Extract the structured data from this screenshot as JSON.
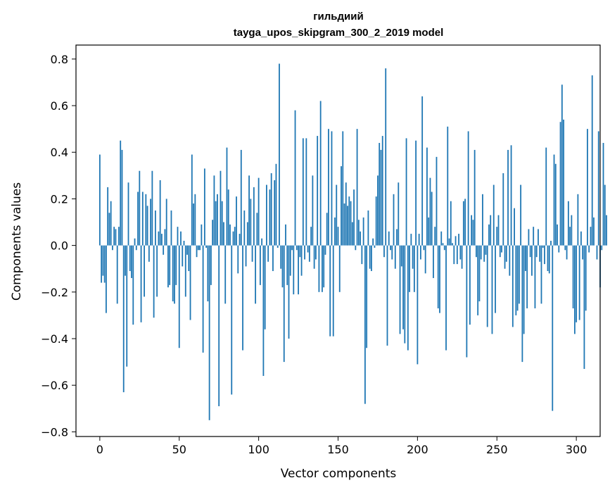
{
  "chart_data": {
    "type": "bar",
    "title": "гильдиий",
    "subtitle": "tayga_upos_skipgram_300_2_2019 model",
    "xlabel": "Vector components",
    "ylabel": "Components values",
    "xlim": [
      -15,
      315
    ],
    "ylim": [
      -0.82,
      0.86
    ],
    "xticks": [
      0,
      50,
      100,
      150,
      200,
      250,
      300
    ],
    "xtick_labels": [
      "0",
      "50",
      "100",
      "150",
      "200",
      "250",
      "300"
    ],
    "yticks": [
      -0.8,
      -0.6,
      -0.4,
      -0.2,
      0.0,
      0.2,
      0.4,
      0.6,
      0.8
    ],
    "ytick_labels": [
      "−0.8",
      "−0.6",
      "−0.4",
      "−0.2",
      "0.0",
      "0.2",
      "0.4",
      "0.6",
      "0.8"
    ],
    "grid": false,
    "bar_color": "#1f77b4",
    "values": [
      0.39,
      -0.16,
      -0.13,
      -0.16,
      -0.29,
      0.25,
      0.14,
      0.19,
      -0.02,
      0.08,
      0.07,
      -0.25,
      0.08,
      0.45,
      0.41,
      -0.63,
      -0.13,
      -0.52,
      0.27,
      -0.11,
      -0.14,
      -0.34,
      0.03,
      -0.02,
      0.23,
      0.32,
      -0.33,
      0.23,
      -0.22,
      0.22,
      0.17,
      -0.07,
      0.2,
      0.32,
      -0.31,
      0.15,
      -0.22,
      0.06,
      0.28,
      0.05,
      -0.04,
      0.07,
      0.2,
      -0.18,
      -0.17,
      0.15,
      -0.24,
      -0.25,
      -0.17,
      0.08,
      -0.44,
      0.06,
      -0.09,
      0.02,
      -0.22,
      -0.04,
      -0.11,
      -0.32,
      0.39,
      0.18,
      0.22,
      -0.05,
      -0.02,
      -0.02,
      0.09,
      -0.46,
      0.33,
      -0.01,
      -0.24,
      -0.75,
      -0.17,
      0.11,
      0.3,
      0.19,
      0.22,
      -0.69,
      0.32,
      0.19,
      0.1,
      -0.25,
      0.42,
      0.24,
      0.09,
      -0.64,
      0.06,
      0.08,
      0.21,
      -0.12,
      0.05,
      0.41,
      -0.45,
      0.15,
      -0.09,
      0.1,
      0.3,
      0.2,
      -0.07,
      0.25,
      -0.25,
      0.14,
      0.29,
      -0.17,
      0.03,
      -0.56,
      -0.36,
      0.26,
      -0.07,
      0.24,
      0.31,
      -0.11,
      0.28,
      0.35,
      -0.01,
      0.78,
      -0.1,
      -0.18,
      -0.5,
      0.09,
      -0.17,
      -0.4,
      -0.13,
      -0.02,
      -0.21,
      0.58,
      -0.02,
      -0.21,
      -0.05,
      -0.13,
      0.46,
      -0.06,
      0.46,
      -0.03,
      -0.07,
      0.08,
      0.3,
      -0.1,
      -0.06,
      0.47,
      -0.2,
      0.62,
      -0.2,
      -0.18,
      -0.04,
      0.14,
      0.5,
      -0.39,
      0.49,
      -0.39,
      0.12,
      0.26,
      0.08,
      -0.2,
      0.34,
      0.49,
      0.18,
      0.27,
      0.17,
      0.21,
      0.19,
      0.1,
      0.24,
      -0.02,
      0.5,
      0.11,
      0.06,
      -0.08,
      0.12,
      -0.68,
      -0.44,
      0.15,
      -0.1,
      -0.11,
      0.03,
      -0.01,
      0.21,
      0.3,
      0.44,
      0.41,
      0.47,
      -0.05,
      0.76,
      -0.43,
      0.06,
      -0.02,
      -0.06,
      0.22,
      -0.1,
      0.07,
      0.27,
      -0.38,
      -0.09,
      -0.36,
      -0.42,
      0.46,
      -0.45,
      -0.2,
      0.05,
      -0.1,
      -0.2,
      0.45,
      -0.51,
      0.05,
      -0.06,
      0.64,
      -0.02,
      -0.12,
      0.42,
      0.12,
      0.29,
      0.23,
      -0.14,
      0.08,
      0.38,
      -0.27,
      -0.29,
      0.06,
      0.01,
      -0.02,
      -0.45,
      0.51,
      0.03,
      0.19,
      0.01,
      -0.08,
      0.04,
      -0.08,
      0.05,
      -0.06,
      -0.1,
      0.19,
      0.2,
      -0.48,
      0.49,
      -0.34,
      0.13,
      0.11,
      0.41,
      -0.05,
      -0.3,
      -0.24,
      -0.06,
      0.22,
      -0.07,
      -0.04,
      -0.35,
      0.09,
      0.13,
      -0.38,
      0.26,
      -0.29,
      0.08,
      0.13,
      -0.05,
      -0.03,
      0.31,
      -0.1,
      -0.07,
      0.41,
      -0.13,
      0.43,
      -0.35,
      0.16,
      -0.3,
      -0.28,
      -0.25,
      0.26,
      -0.5,
      -0.38,
      -0.11,
      -0.27,
      0.07,
      -0.05,
      -0.13,
      0.08,
      -0.27,
      -0.05,
      0.07,
      -0.07,
      -0.25,
      -0.01,
      -0.08,
      0.42,
      -0.11,
      -0.12,
      0.02,
      -0.71,
      0.39,
      0.35,
      0.09,
      -0.03,
      0.53,
      0.69,
      0.54,
      -0.02,
      -0.06,
      0.19,
      0.08,
      0.13,
      -0.27,
      -0.38,
      -0.33,
      0.22,
      -0.32,
      0.06,
      -0.06,
      -0.53,
      -0.28,
      0.5,
      -0.03,
      0.08,
      0.73,
      0.12,
      0.0,
      -0.06,
      0.49,
      -0.18,
      -0.02,
      0.44,
      0.26,
      0.13
    ]
  }
}
